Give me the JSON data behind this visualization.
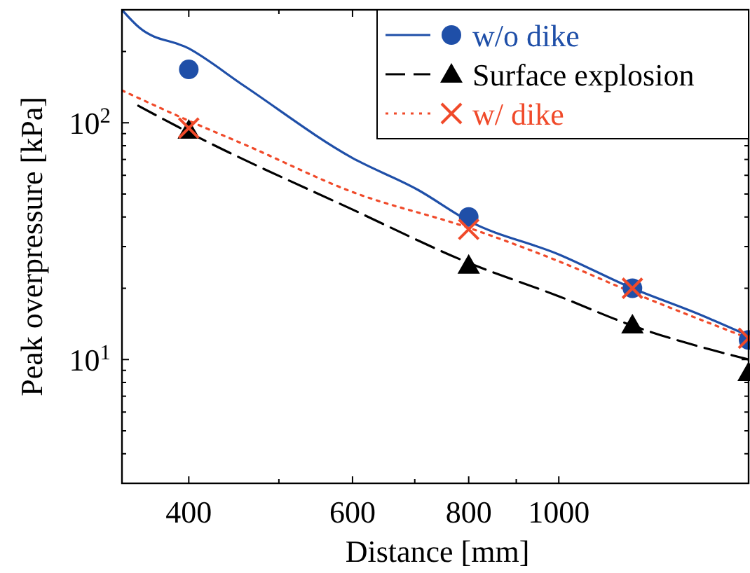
{
  "chart_data": {
    "type": "line",
    "xlabel": "Distance [mm]",
    "ylabel": "Peak overpressure [kPa]",
    "log": "xy",
    "xlim": [
      339,
      1600
    ],
    "ylim": [
      3,
      300
    ],
    "xticks": [
      400,
      {
        "value": 500,
        "label": null
      },
      600,
      {
        "value": 700,
        "label": null
      },
      800,
      {
        "value": 900,
        "label": null
      },
      1000
    ],
    "yticks": [
      {
        "value": 4,
        "label": null
      },
      {
        "value": 5,
        "label": null
      },
      {
        "value": 6,
        "label": null
      },
      {
        "value": 7,
        "label": null
      },
      {
        "value": 8,
        "label": null
      },
      {
        "value": 9,
        "label": null
      },
      {
        "value": 10,
        "label": "10$^{1}$"
      },
      {
        "value": 20,
        "label": null
      },
      {
        "value": 30,
        "label": null
      },
      {
        "value": 40,
        "label": null
      },
      {
        "value": 50,
        "label": null
      },
      {
        "value": 60,
        "label": null
      },
      {
        "value": 70,
        "label": null
      },
      {
        "value": 80,
        "label": null
      },
      {
        "value": 90,
        "label": null
      },
      {
        "value": 100,
        "label": "10$^{2}$"
      },
      {
        "value": 200,
        "label": null
      },
      {
        "value": 300,
        "label": null
      }
    ],
    "grid": false,
    "legend": "top right",
    "series": [
      {
        "name": "w/o dike",
        "type": "line",
        "color": "#1f4fa8",
        "line_style": "solid",
        "x": [
          339,
          354,
          400,
          459,
          600,
          706,
          800,
          1000,
          1200,
          1406,
          1600
        ],
        "values": [
          300,
          252,
          206,
          143,
          71,
          52,
          38.5,
          27.8,
          20,
          15.7,
          12.6
        ]
      },
      {
        "name": "Surface explosion",
        "type": "line",
        "color": "#000000",
        "line_style": "dashed",
        "x": [
          353,
          400,
          600,
          800,
          1000,
          1200,
          1600
        ],
        "values": [
          118,
          91,
          43,
          25.6,
          18.5,
          13.9,
          10
        ]
      },
      {
        "name": "w/ dike",
        "type": "line",
        "color": "#f04a2a",
        "line_style": "dotted",
        "x": [
          339,
          400,
          459,
          600,
          800,
          1000,
          1200,
          1600
        ],
        "values": [
          137,
          102,
          81,
          51,
          36,
          26,
          19.2,
          12.3
        ]
      },
      {
        "type": "scatter",
        "color": "#1f4fa8",
        "marker": "circle",
        "x": [
          400,
          800,
          1200,
          1600
        ],
        "values": [
          168,
          40,
          20,
          12.1
        ]
      },
      {
        "type": "scatter",
        "color": "#000000",
        "marker": "triangle",
        "x": [
          400,
          800,
          1200,
          1600
        ],
        "values": [
          93,
          25,
          14,
          8.8
        ]
      },
      {
        "type": "scatter",
        "color": "#f04a2a",
        "marker": "cross",
        "x": [
          400,
          800,
          1200,
          1600
        ],
        "values": [
          95,
          35.5,
          20,
          12.3
        ]
      }
    ]
  }
}
